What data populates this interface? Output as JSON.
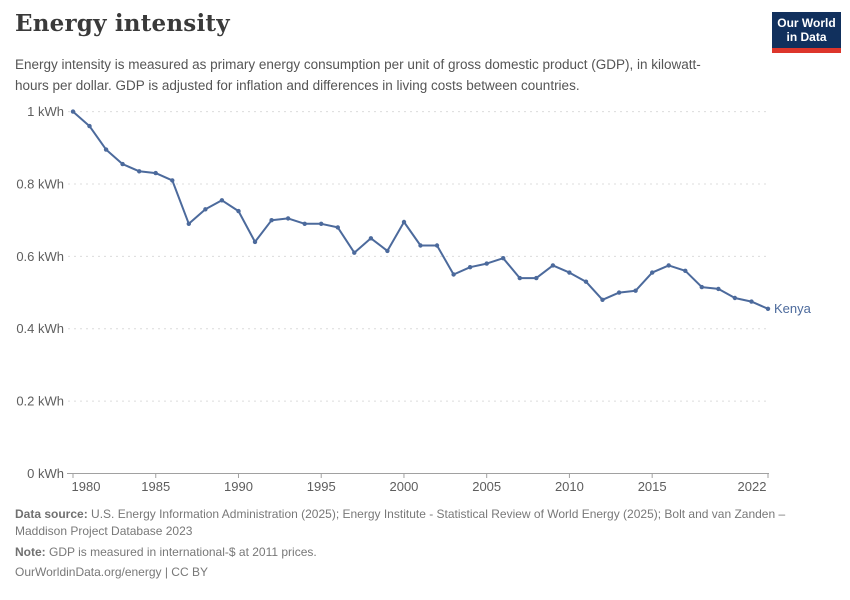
{
  "header": {
    "title": "Energy intensity",
    "subtitle": "Energy intensity is measured as primary energy consumption per unit of gross domestic product (GDP), in kilowatt-hours per dollar. GDP is adjusted for inflation and differences in living costs between countries."
  },
  "logo": {
    "line1": "Our World",
    "line2": "in Data"
  },
  "footer": {
    "data_source_label": "Data source:",
    "data_source": "U.S. Energy Information Administration (2025); Energy Institute - Statistical Review of World Energy (2025); Bolt and van Zanden – Maddison Project Database 2023",
    "note_label": "Note:",
    "note": "GDP is measured in international-$ at 2011 prices.",
    "citation": "OurWorldinData.org/energy | CC BY"
  },
  "colors": {
    "line": "#4c6a9c",
    "grid": "#dcdcdc",
    "axis": "#a1a1a1",
    "tick_label": "#5e5e5e",
    "logo_navy": "#11305d",
    "logo_red": "#dd352b"
  },
  "chart_data": {
    "type": "line",
    "title": "Energy intensity",
    "unit": "kWh",
    "xlim": [
      1980,
      2022
    ],
    "ylim": [
      0,
      1
    ],
    "grid": "dashed-horizontal",
    "legend_position": "end-of-line-label",
    "x_ticks": [
      1980,
      1985,
      1990,
      1995,
      2000,
      2005,
      2010,
      2015,
      2022
    ],
    "y_ticks": [
      {
        "v": 0,
        "label": "0 kWh"
      },
      {
        "v": 0.2,
        "label": "0.2 kWh"
      },
      {
        "v": 0.4,
        "label": "0.4 kWh"
      },
      {
        "v": 0.6,
        "label": "0.6 kWh"
      },
      {
        "v": 0.8,
        "label": "0.8 kWh"
      },
      {
        "v": 1,
        "label": "1 kWh"
      }
    ],
    "series": [
      {
        "name": "Kenya",
        "x": [
          1980,
          1981,
          1982,
          1983,
          1984,
          1985,
          1986,
          1987,
          1988,
          1989,
          1990,
          1991,
          1992,
          1993,
          1994,
          1995,
          1996,
          1997,
          1998,
          1999,
          2000,
          2001,
          2002,
          2003,
          2004,
          2005,
          2006,
          2007,
          2008,
          2009,
          2010,
          2011,
          2012,
          2013,
          2014,
          2015,
          2016,
          2017,
          2018,
          2019,
          2020,
          2021,
          2022
        ],
        "values": [
          1.0,
          0.96,
          0.895,
          0.855,
          0.835,
          0.83,
          0.81,
          0.69,
          0.73,
          0.755,
          0.725,
          0.64,
          0.7,
          0.705,
          0.69,
          0.69,
          0.68,
          0.61,
          0.65,
          0.615,
          0.695,
          0.63,
          0.63,
          0.55,
          0.57,
          0.58,
          0.595,
          0.54,
          0.54,
          0.575,
          0.555,
          0.53,
          0.48,
          0.5,
          0.505,
          0.555,
          0.575,
          0.56,
          0.515,
          0.51,
          0.485,
          0.475,
          0.455
        ]
      }
    ]
  }
}
